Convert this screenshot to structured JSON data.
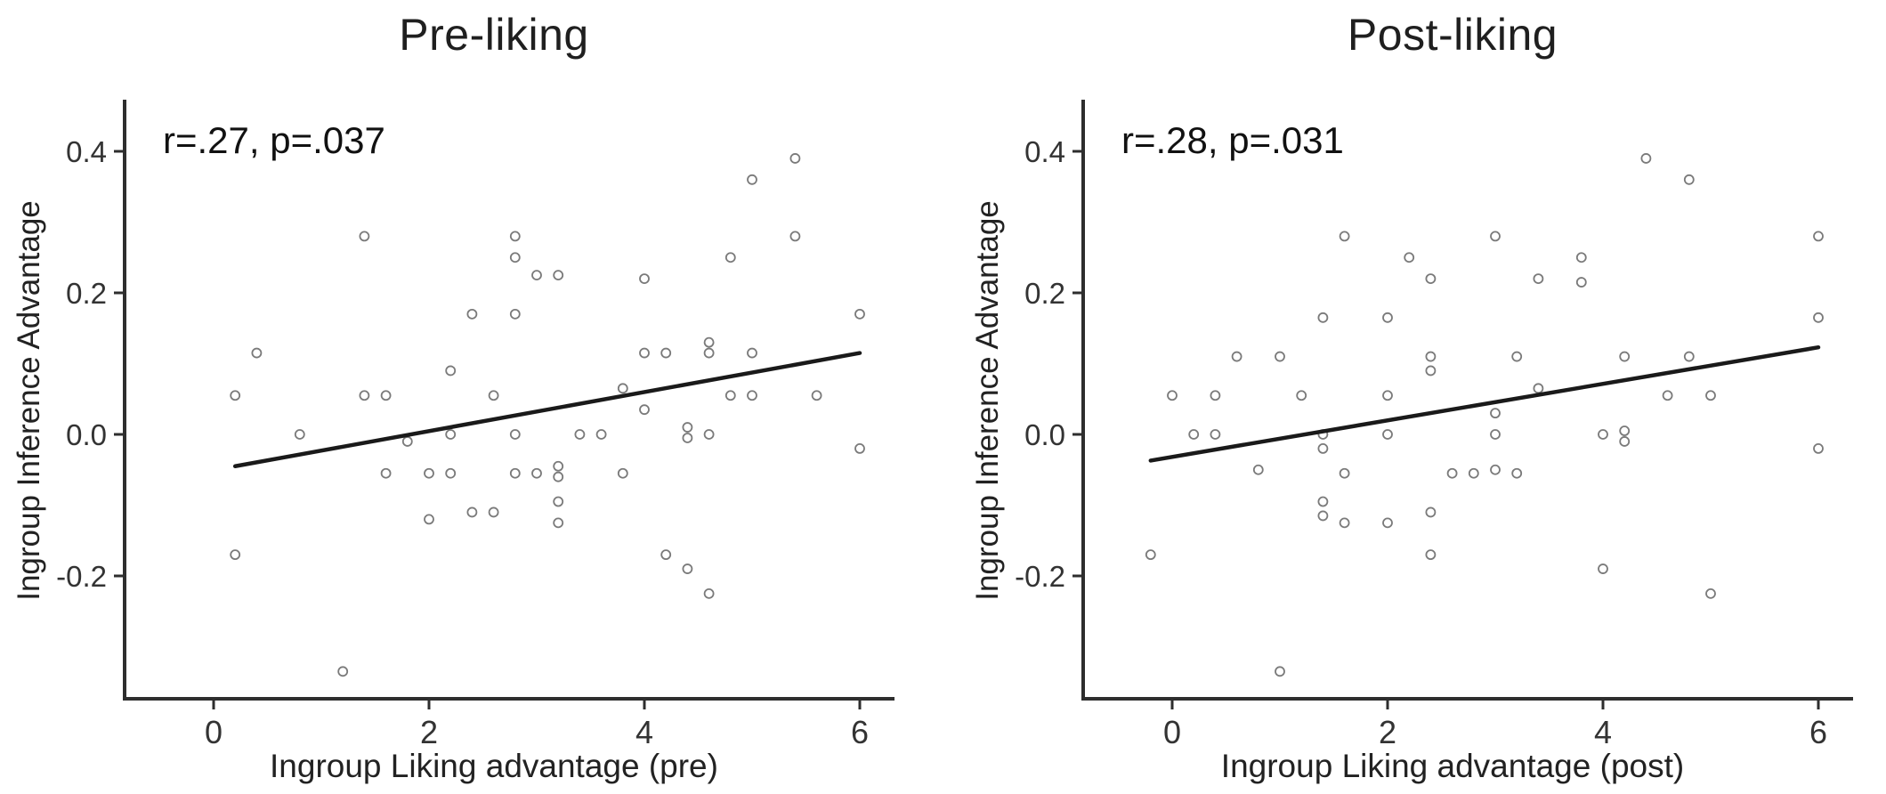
{
  "figure": {
    "background_color": "#ffffff",
    "text_color": "#1a1a1a",
    "axis_color": "#2e2e2e",
    "marker_color": "#7a7a7a",
    "line_color": "#1a1a1a",
    "ylabel": "Ingroup Inference Advantage"
  },
  "chart_data": [
    {
      "type": "scatter",
      "title": "Pre-liking",
      "annotation": "r=.27, p=.037",
      "xlabel": "Ingroup Liking advantage (pre)",
      "ylabel": "Ingroup Inference Advantage",
      "xlim": [
        -0.85,
        6.5
      ],
      "ylim": [
        -0.38,
        0.47
      ],
      "xticks": [
        0,
        2,
        4,
        6
      ],
      "xtick_labels": [
        "0",
        "2",
        "4",
        "6"
      ],
      "yticks": [
        0.4,
        0.2,
        0.0,
        -0.2
      ],
      "ytick_labels": [
        "0.4",
        "0.2",
        "0.0",
        "-0.2"
      ],
      "grid": false,
      "legend": "none",
      "regression_line": {
        "x1": 0.2,
        "y1": -0.045,
        "x2": 6.0,
        "y2": 0.115
      },
      "points": [
        [
          5.4,
          0.39
        ],
        [
          5.0,
          0.36
        ],
        [
          1.4,
          0.28
        ],
        [
          2.8,
          0.28
        ],
        [
          5.4,
          0.28
        ],
        [
          2.8,
          0.25
        ],
        [
          4.8,
          0.25
        ],
        [
          3.0,
          0.225
        ],
        [
          3.2,
          0.225
        ],
        [
          4.0,
          0.22
        ],
        [
          2.4,
          0.17
        ],
        [
          2.8,
          0.17
        ],
        [
          6.0,
          0.17
        ],
        [
          0.4,
          0.115
        ],
        [
          4.0,
          0.115
        ],
        [
          4.2,
          0.115
        ],
        [
          4.6,
          0.115
        ],
        [
          4.6,
          0.13
        ],
        [
          5.0,
          0.115
        ],
        [
          2.2,
          0.09
        ],
        [
          3.8,
          0.065
        ],
        [
          0.2,
          0.055
        ],
        [
          1.4,
          0.055
        ],
        [
          1.6,
          0.055
        ],
        [
          2.6,
          0.055
        ],
        [
          4.8,
          0.055
        ],
        [
          5.0,
          0.055
        ],
        [
          5.6,
          0.055
        ],
        [
          4.0,
          0.035
        ],
        [
          0.8,
          0.0
        ],
        [
          2.2,
          0.0
        ],
        [
          2.8,
          0.0
        ],
        [
          3.4,
          0.0
        ],
        [
          3.6,
          0.0
        ],
        [
          4.4,
          0.01
        ],
        [
          4.4,
          -0.005
        ],
        [
          4.6,
          0.0
        ],
        [
          1.8,
          -0.01
        ],
        [
          6.0,
          -0.02
        ],
        [
          1.6,
          -0.055
        ],
        [
          2.0,
          -0.055
        ],
        [
          2.2,
          -0.055
        ],
        [
          2.8,
          -0.055
        ],
        [
          3.0,
          -0.055
        ],
        [
          3.2,
          -0.045
        ],
        [
          3.2,
          -0.06
        ],
        [
          3.8,
          -0.055
        ],
        [
          3.2,
          -0.095
        ],
        [
          2.0,
          -0.12
        ],
        [
          2.4,
          -0.11
        ],
        [
          2.6,
          -0.11
        ],
        [
          3.2,
          -0.125
        ],
        [
          0.2,
          -0.17
        ],
        [
          4.2,
          -0.17
        ],
        [
          4.4,
          -0.19
        ],
        [
          4.6,
          -0.225
        ],
        [
          1.2,
          -0.335
        ]
      ]
    },
    {
      "type": "scatter",
      "title": "Post-liking",
      "annotation": "r=.28, p=.031",
      "xlabel": "Ingroup Liking advantage (post)",
      "ylabel": "Ingroup Inference Advantage",
      "xlim": [
        -0.85,
        6.5
      ],
      "ylim": [
        -0.38,
        0.47
      ],
      "xticks": [
        0,
        2,
        4,
        6
      ],
      "xtick_labels": [
        "0",
        "2",
        "4",
        "6"
      ],
      "yticks": [
        0.4,
        0.2,
        0.0,
        -0.2
      ],
      "ytick_labels": [
        "0.4",
        "0.2",
        "0.0",
        "-0.2"
      ],
      "grid": false,
      "legend": "none",
      "regression_line": {
        "x1": -0.2,
        "y1": -0.037,
        "x2": 6.0,
        "y2": 0.123
      },
      "points": [
        [
          4.4,
          0.39
        ],
        [
          4.8,
          0.36
        ],
        [
          1.6,
          0.28
        ],
        [
          3.0,
          0.28
        ],
        [
          6.0,
          0.28
        ],
        [
          2.2,
          0.25
        ],
        [
          3.8,
          0.25
        ],
        [
          2.4,
          0.22
        ],
        [
          3.4,
          0.22
        ],
        [
          3.8,
          0.215
        ],
        [
          1.4,
          0.165
        ],
        [
          2.0,
          0.165
        ],
        [
          6.0,
          0.165
        ],
        [
          0.6,
          0.11
        ],
        [
          1.0,
          0.11
        ],
        [
          2.4,
          0.11
        ],
        [
          3.2,
          0.11
        ],
        [
          4.2,
          0.11
        ],
        [
          4.8,
          0.11
        ],
        [
          2.4,
          0.09
        ],
        [
          3.4,
          0.065
        ],
        [
          0.0,
          0.055
        ],
        [
          0.4,
          0.055
        ],
        [
          1.2,
          0.055
        ],
        [
          2.0,
          0.055
        ],
        [
          4.6,
          0.055
        ],
        [
          5.0,
          0.055
        ],
        [
          3.0,
          0.03
        ],
        [
          0.2,
          0.0
        ],
        [
          0.4,
          0.0
        ],
        [
          1.4,
          0.0
        ],
        [
          2.0,
          0.0
        ],
        [
          3.0,
          0.0
        ],
        [
          4.0,
          0.0
        ],
        [
          4.2,
          0.005
        ],
        [
          4.2,
          -0.01
        ],
        [
          1.4,
          -0.02
        ],
        [
          6.0,
          -0.02
        ],
        [
          0.8,
          -0.05
        ],
        [
          3.0,
          -0.05
        ],
        [
          1.6,
          -0.055
        ],
        [
          2.6,
          -0.055
        ],
        [
          2.8,
          -0.055
        ],
        [
          3.2,
          -0.055
        ],
        [
          1.4,
          -0.095
        ],
        [
          1.4,
          -0.115
        ],
        [
          1.6,
          -0.125
        ],
        [
          2.0,
          -0.125
        ],
        [
          2.4,
          -0.11
        ],
        [
          -0.2,
          -0.17
        ],
        [
          2.4,
          -0.17
        ],
        [
          4.0,
          -0.19
        ],
        [
          5.0,
          -0.225
        ],
        [
          1.0,
          -0.335
        ]
      ]
    }
  ]
}
